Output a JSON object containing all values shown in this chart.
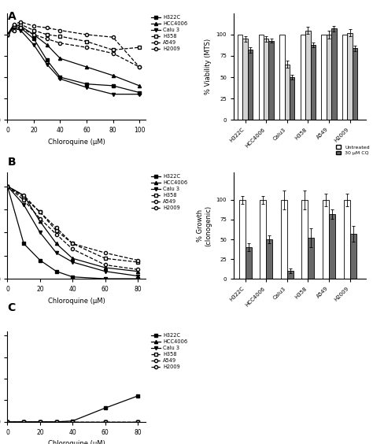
{
  "cell_lines": [
    "H322C",
    "HCC4006",
    "Calu 3",
    "H358",
    "A549",
    "H2009"
  ],
  "panel_A_line": {
    "x": [
      0,
      5,
      10,
      20,
      30,
      40,
      60,
      80,
      100
    ],
    "H322C": [
      100,
      110,
      108,
      95,
      70,
      50,
      42,
      40,
      32
    ],
    "HCC4006": [
      100,
      112,
      110,
      100,
      88,
      72,
      62,
      52,
      40
    ],
    "Calu3": [
      100,
      108,
      105,
      88,
      65,
      48,
      38,
      30,
      30
    ],
    "H358": [
      100,
      110,
      112,
      105,
      100,
      98,
      92,
      82,
      85
    ],
    "A549": [
      100,
      112,
      115,
      110,
      108,
      105,
      100,
      97,
      62
    ],
    "H2009": [
      100,
      105,
      108,
      100,
      95,
      90,
      85,
      78,
      62
    ]
  },
  "panel_A_bar": {
    "untreated": [
      100,
      100,
      100,
      100,
      100,
      100
    ],
    "cq40": [
      95,
      95,
      65,
      105,
      100,
      102
    ],
    "cq60": [
      82,
      93,
      50,
      88,
      107,
      84
    ],
    "cq40_err": [
      3,
      3,
      4,
      4,
      5,
      4
    ],
    "cq60_err": [
      3,
      2,
      3,
      3,
      3,
      3
    ]
  },
  "panel_B_line": {
    "x": [
      0,
      10,
      20,
      30,
      40,
      60,
      80
    ],
    "H322C": [
      100,
      38,
      20,
      8,
      2,
      0,
      0
    ],
    "HCC4006": [
      100,
      90,
      62,
      38,
      22,
      12,
      8
    ],
    "Calu3": [
      100,
      80,
      50,
      28,
      18,
      8,
      3
    ],
    "H358": [
      100,
      88,
      72,
      52,
      38,
      22,
      18
    ],
    "A549": [
      100,
      85,
      65,
      48,
      32,
      15,
      10
    ],
    "H2009": [
      100,
      90,
      72,
      55,
      38,
      28,
      20
    ]
  },
  "panel_B_bar": {
    "untreated": [
      100,
      100,
      100,
      100,
      100,
      100
    ],
    "cq30": [
      40,
      50,
      10,
      52,
      82,
      57
    ],
    "untreated_err": [
      5,
      5,
      12,
      12,
      8,
      8
    ],
    "cq30_err": [
      5,
      5,
      3,
      12,
      6,
      10
    ]
  },
  "panel_C_line": {
    "x": [
      0,
      10,
      20,
      30,
      40,
      60,
      80
    ],
    "H322C": [
      0,
      0,
      0,
      0,
      1,
      16,
      30
    ],
    "HCC4006": [
      0,
      0,
      0,
      0,
      0,
      0,
      0
    ],
    "Calu3": [
      0,
      0,
      0,
      0,
      0,
      0,
      0
    ],
    "H358": [
      0,
      0,
      0,
      0,
      0,
      0,
      0
    ],
    "A549": [
      0,
      0,
      0,
      0,
      0,
      0,
      0
    ],
    "H2009": [
      0,
      0,
      0,
      0,
      0,
      0,
      0
    ]
  }
}
